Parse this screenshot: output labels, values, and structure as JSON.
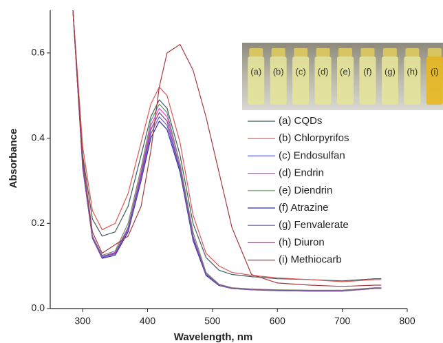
{
  "chart_data": {
    "type": "line",
    "xlabel": "Wavelength, nm",
    "ylabel": "Absorbance",
    "xlim": [
      250,
      800
    ],
    "xticks": [
      300,
      400,
      500,
      600,
      700,
      800
    ],
    "ylim": [
      0,
      0.7
    ],
    "yticks": [
      {
        "value": 0,
        "label": "0.0"
      },
      0.2,
      0.4,
      0.6
    ],
    "legend": "right",
    "inset_labels": [
      "(a)",
      "(b)",
      "(c)",
      "(d)",
      "(e)",
      "(f)",
      "(g)",
      "(h)",
      "(i)"
    ],
    "x": [
      285,
      300,
      315,
      330,
      350,
      370,
      390,
      405,
      418,
      430,
      450,
      470,
      490,
      510,
      530,
      560,
      600,
      650,
      700,
      750,
      760
    ],
    "series": [
      {
        "name": "(a) CQDs",
        "color": "#3d5c5c",
        "values": [
          0.7,
          0.36,
          0.21,
          0.17,
          0.18,
          0.24,
          0.36,
          0.45,
          0.49,
          0.47,
          0.36,
          0.2,
          0.12,
          0.09,
          0.08,
          0.075,
          0.07,
          0.068,
          0.065,
          0.07,
          0.07
        ]
      },
      {
        "name": "(b) Chlorpyrifos",
        "color": "#e05555",
        "values": [
          0.7,
          0.38,
          0.23,
          0.185,
          0.2,
          0.27,
          0.39,
          0.48,
          0.52,
          0.5,
          0.39,
          0.22,
          0.13,
          0.1,
          0.085,
          0.078,
          0.072,
          0.068,
          0.063,
          0.068,
          0.068
        ]
      },
      {
        "name": "(c) Endosulfan",
        "color": "#5a5ae0",
        "values": [
          0.7,
          0.34,
          0.17,
          0.12,
          0.13,
          0.19,
          0.31,
          0.42,
          0.46,
          0.44,
          0.33,
          0.17,
          0.08,
          0.055,
          0.048,
          0.045,
          0.043,
          0.042,
          0.042,
          0.048,
          0.048
        ]
      },
      {
        "name": "(d) Endrin",
        "color": "#e040e0",
        "values": [
          0.7,
          0.34,
          0.17,
          0.122,
          0.132,
          0.19,
          0.32,
          0.43,
          0.47,
          0.45,
          0.34,
          0.17,
          0.08,
          0.056,
          0.048,
          0.045,
          0.043,
          0.042,
          0.042,
          0.048,
          0.048
        ]
      },
      {
        "name": "(e) Diendrin",
        "color": "#6f8f6f",
        "values": [
          0.7,
          0.35,
          0.17,
          0.125,
          0.135,
          0.2,
          0.33,
          0.44,
          0.48,
          0.46,
          0.34,
          0.18,
          0.085,
          0.057,
          0.049,
          0.046,
          0.044,
          0.043,
          0.043,
          0.049,
          0.049
        ]
      },
      {
        "name": "(f) Atrazine",
        "color": "#2e2eb0",
        "values": [
          0.7,
          0.33,
          0.165,
          0.118,
          0.125,
          0.18,
          0.3,
          0.4,
          0.44,
          0.42,
          0.32,
          0.16,
          0.078,
          0.054,
          0.047,
          0.044,
          0.042,
          0.041,
          0.041,
          0.047,
          0.047
        ]
      },
      {
        "name": "(g) Fenvalerate",
        "color": "#7455c8",
        "values": [
          0.7,
          0.33,
          0.165,
          0.12,
          0.128,
          0.185,
          0.305,
          0.41,
          0.45,
          0.43,
          0.325,
          0.165,
          0.08,
          0.055,
          0.047,
          0.044,
          0.042,
          0.041,
          0.041,
          0.047,
          0.047
        ]
      },
      {
        "name": "(h) Diuron",
        "color": "#8f5585",
        "values": [
          0.7,
          0.34,
          0.17,
          0.123,
          0.13,
          0.19,
          0.315,
          0.42,
          0.46,
          0.44,
          0.33,
          0.17,
          0.082,
          0.056,
          0.048,
          0.045,
          0.043,
          0.042,
          0.042,
          0.048,
          0.048
        ]
      },
      {
        "name": "(i) Methiocarb",
        "color": "#a33a3a",
        "values": [
          0.7,
          0.35,
          0.18,
          0.13,
          0.15,
          0.17,
          0.24,
          0.37,
          0.52,
          0.6,
          0.62,
          0.56,
          0.45,
          0.32,
          0.19,
          0.08,
          0.06,
          0.055,
          0.052,
          0.055,
          0.055
        ]
      }
    ]
  }
}
